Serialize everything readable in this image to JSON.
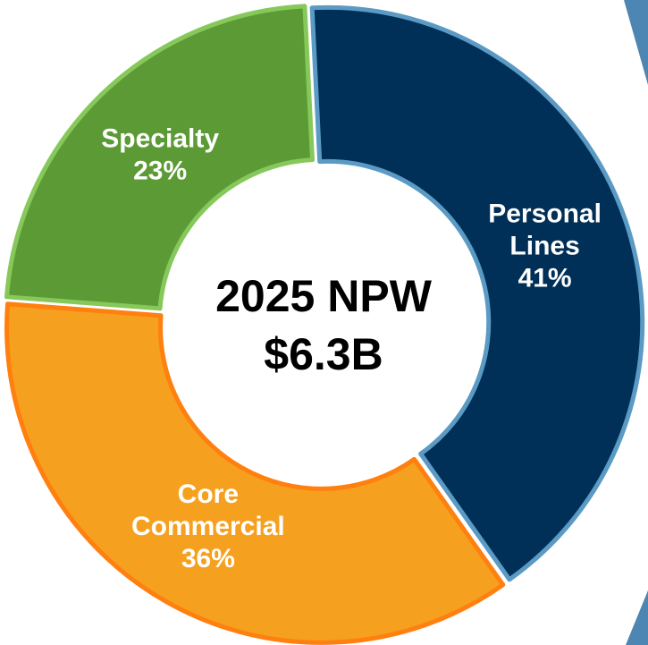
{
  "chart_data": {
    "type": "donut",
    "title": "2025 NPW",
    "subtitle": "$6.3B",
    "categories": [
      "Personal Lines",
      "Core Commercial",
      "Specialty"
    ],
    "values": [
      41,
      36,
      23
    ],
    "value_labels": [
      "41%",
      "36%",
      "23%"
    ],
    "colors": [
      "#003057",
      "#f6a01f",
      "#5c9a36"
    ],
    "edge_colors": [
      "#5b9ac4",
      "#ff7f0f",
      "#86c85a"
    ]
  }
}
